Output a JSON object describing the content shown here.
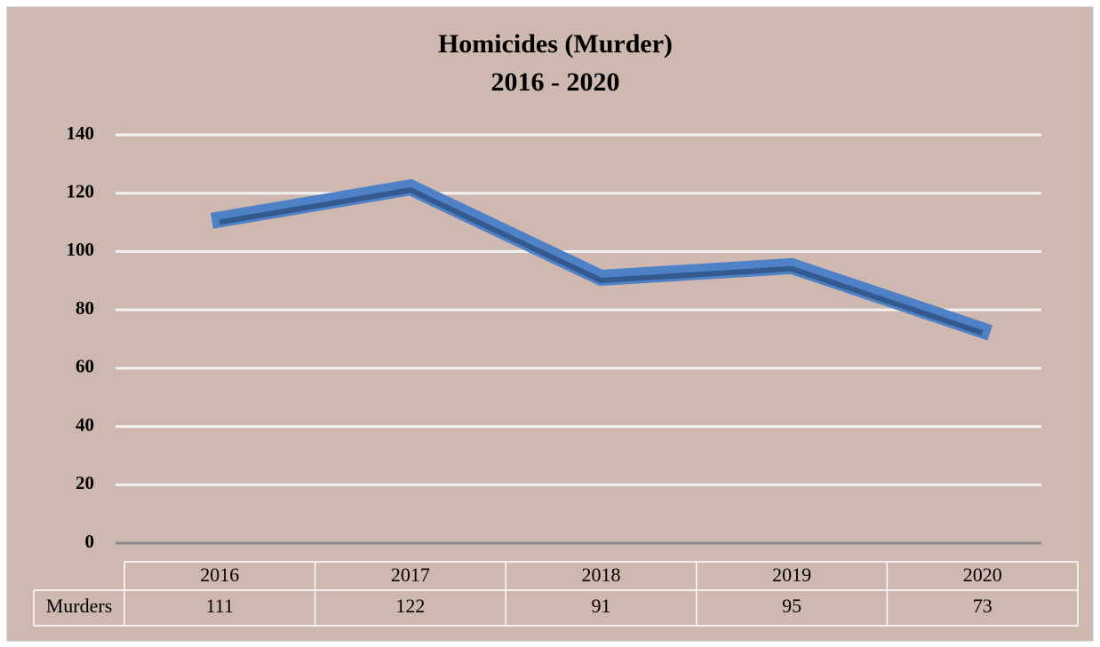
{
  "chart_data": {
    "type": "line",
    "title": "Homicides (Murder)",
    "subtitle": "2016 - 2020",
    "categories": [
      "2016",
      "2017",
      "2018",
      "2019",
      "2020"
    ],
    "series": [
      {
        "name": "Murders",
        "color": "#4f81c7",
        "values": [
          111,
          122,
          91,
          95,
          73
        ]
      }
    ],
    "ylim": [
      0,
      140
    ],
    "yticks": [
      0,
      20,
      40,
      60,
      80,
      100,
      120,
      140
    ],
    "grid": true,
    "data_table": true
  }
}
